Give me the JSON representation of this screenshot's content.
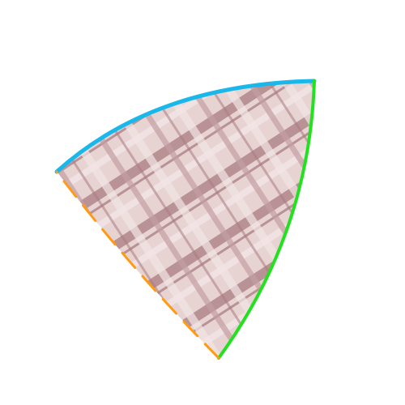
{
  "shape": {
    "kind": "curved-triangle",
    "fill_pattern": "plaid",
    "colors": {
      "fabric_base": "#e8d3d3",
      "fabric_light": "#f3e6e6",
      "stripe_dark": "#a97c80",
      "stripe_mid": "#c49ea1",
      "edge_top": "#1ab8ea",
      "edge_right": "#22e21f",
      "edge_left": "#ff9a14"
    },
    "edges": {
      "top": {
        "style": "solid"
      },
      "right": {
        "style": "solid"
      },
      "left": {
        "style": "dashed"
      }
    }
  }
}
